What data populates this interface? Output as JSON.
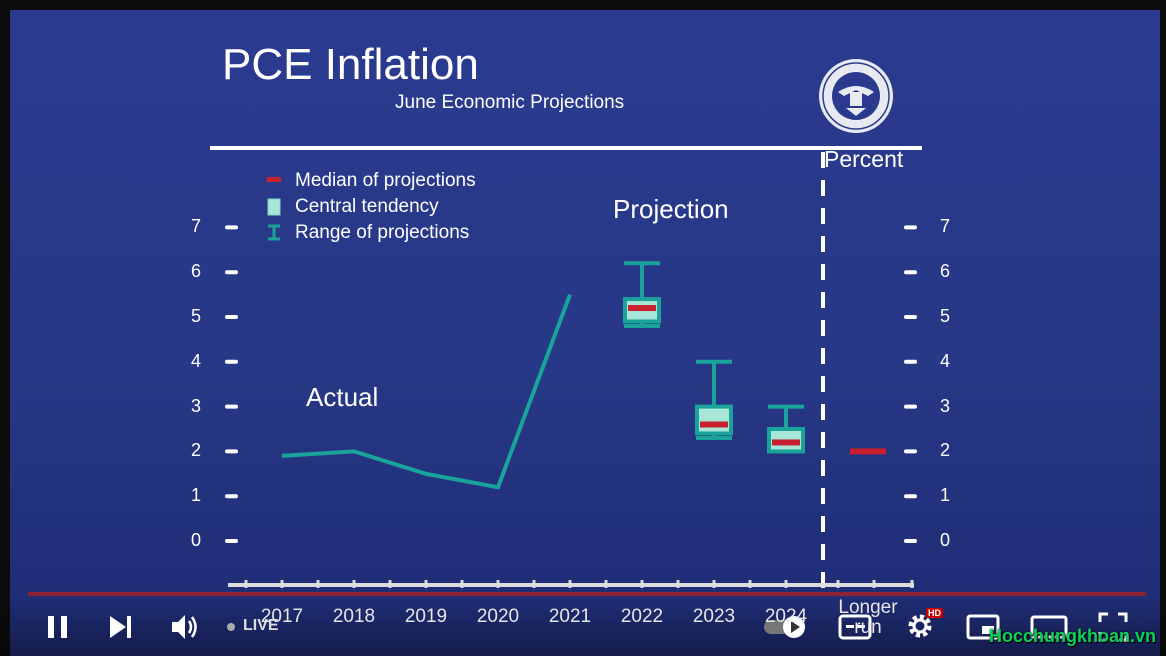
{
  "slide": {
    "title": "PCE Inflation",
    "subtitle": "June Economic Projections",
    "unit_label": "Percent",
    "actual_label": "Actual",
    "projection_label": "Projection",
    "seal_name": "federal-reserve-seal"
  },
  "legend": [
    {
      "label": "Median of projections",
      "icon": "median-bar",
      "color": "#c8202e"
    },
    {
      "label": "Central tendency",
      "icon": "central-box",
      "color": "#a8e6d8"
    },
    {
      "label": "Range of projections",
      "icon": "range-ibeam",
      "color": "#1aa39a"
    }
  ],
  "chart_data": {
    "type": "line",
    "title": "PCE Inflation",
    "subtitle": "June Economic Projections",
    "ylabel": "Percent",
    "ylim": [
      0,
      7
    ],
    "yticks": [
      "0",
      "1",
      "2",
      "3",
      "4",
      "5",
      "6",
      "7"
    ],
    "categories": [
      "2017",
      "2018",
      "2019",
      "2020",
      "2021",
      "2022",
      "2023",
      "2024",
      "Longer run"
    ],
    "actual": {
      "x": [
        "2017",
        "2018",
        "2019",
        "2020",
        "2021"
      ],
      "y": [
        1.9,
        2.0,
        1.5,
        1.2,
        5.5
      ]
    },
    "projections": [
      {
        "year": "2022",
        "range": [
          4.8,
          6.2
        ],
        "central": [
          4.9,
          5.4
        ],
        "median": 5.2
      },
      {
        "year": "2023",
        "range": [
          2.3,
          4.0
        ],
        "central": [
          2.4,
          3.0
        ],
        "median": 2.6
      },
      {
        "year": "2024",
        "range": [
          2.0,
          3.0
        ],
        "central": [
          2.0,
          2.5
        ],
        "median": 2.2
      },
      {
        "year": "Longer run",
        "median": 2.0
      }
    ],
    "colors": {
      "line": "#1aa39a",
      "median": "#c8202e",
      "central": "#a8e6d8",
      "box_border": "#1aa39a"
    }
  },
  "player": {
    "live_label": "LIVE",
    "hd_badge": "HD",
    "buttons": [
      "pause-button",
      "next-button",
      "volume-button",
      "autoplay-toggle",
      "subtitles-button",
      "settings-button",
      "miniplayer-button",
      "theater-button",
      "fullscreen-button"
    ]
  },
  "watermark": "Hocchungkhoan.vn"
}
